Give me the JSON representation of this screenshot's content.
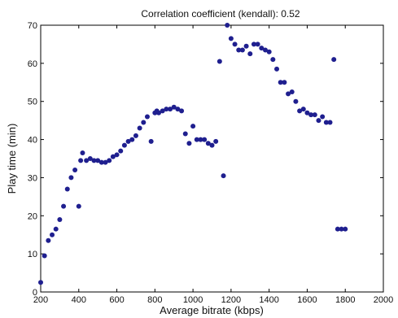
{
  "chart_data": {
    "type": "scatter",
    "title": "Correlation coefficient (kendall): 0.52",
    "xlabel": "Average bitrate (kbps)",
    "ylabel": "Play time (min)",
    "xlim": [
      200,
      2000
    ],
    "ylim": [
      0,
      70
    ],
    "xticks": [
      200,
      400,
      600,
      800,
      1000,
      1200,
      1400,
      1600,
      1800,
      2000
    ],
    "yticks": [
      0,
      10,
      20,
      30,
      40,
      50,
      60,
      70
    ],
    "grid": false,
    "marker_color": "#1f1f8f",
    "series": [
      {
        "x": [
          200,
          220,
          240,
          260,
          280,
          300,
          320,
          340,
          360,
          380,
          400,
          410,
          420,
          440,
          460,
          480,
          500,
          520,
          540,
          560,
          580,
          600,
          620,
          640,
          660,
          680,
          700,
          720,
          740,
          760,
          780,
          800,
          810,
          820,
          840,
          860,
          880,
          900,
          920,
          940,
          960,
          980,
          1000,
          1020,
          1040,
          1060,
          1080,
          1100,
          1120,
          1140,
          1160,
          1180,
          1200,
          1220,
          1240,
          1260,
          1280,
          1300,
          1320,
          1340,
          1360,
          1380,
          1400,
          1420,
          1440,
          1460,
          1480,
          1500,
          1520,
          1540,
          1560,
          1580,
          1600,
          1620,
          1640,
          1660,
          1680,
          1700,
          1720,
          1740,
          1760,
          1780,
          1800
        ],
        "y": [
          2.5,
          9.5,
          13.5,
          15,
          16.5,
          19,
          22.5,
          27,
          30,
          32,
          22.5,
          34.5,
          36.5,
          34.5,
          35,
          34.5,
          34.5,
          34,
          34,
          34.5,
          35.5,
          36,
          37,
          38.5,
          39.5,
          40,
          41,
          43,
          44.5,
          46,
          39.5,
          47,
          47.5,
          47,
          47.5,
          48,
          48,
          48.5,
          48,
          47.5,
          41.5,
          39,
          43.5,
          40,
          40,
          40,
          39,
          38.5,
          39.5,
          60.5,
          30.5,
          70,
          66.5,
          65,
          63.5,
          63.5,
          64.5,
          62.5,
          65,
          65,
          64,
          63.5,
          63,
          61,
          58.5,
          55,
          55,
          52,
          52.5,
          50,
          47.5,
          48,
          47,
          46.5,
          46.5,
          45,
          46,
          44.5,
          44.5,
          61,
          16.5,
          16.5,
          16.5
        ]
      }
    ]
  }
}
